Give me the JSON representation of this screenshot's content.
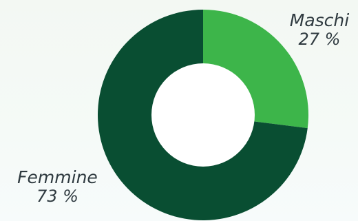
{
  "chart_data": {
    "type": "pie",
    "categories": [
      "Maschi",
      "Femmine"
    ],
    "values": [
      27,
      73
    ],
    "value_labels": [
      "27 %",
      "73 %"
    ],
    "colors": [
      "#3db54a",
      "#094e32"
    ],
    "donut": true,
    "legend": "none"
  }
}
